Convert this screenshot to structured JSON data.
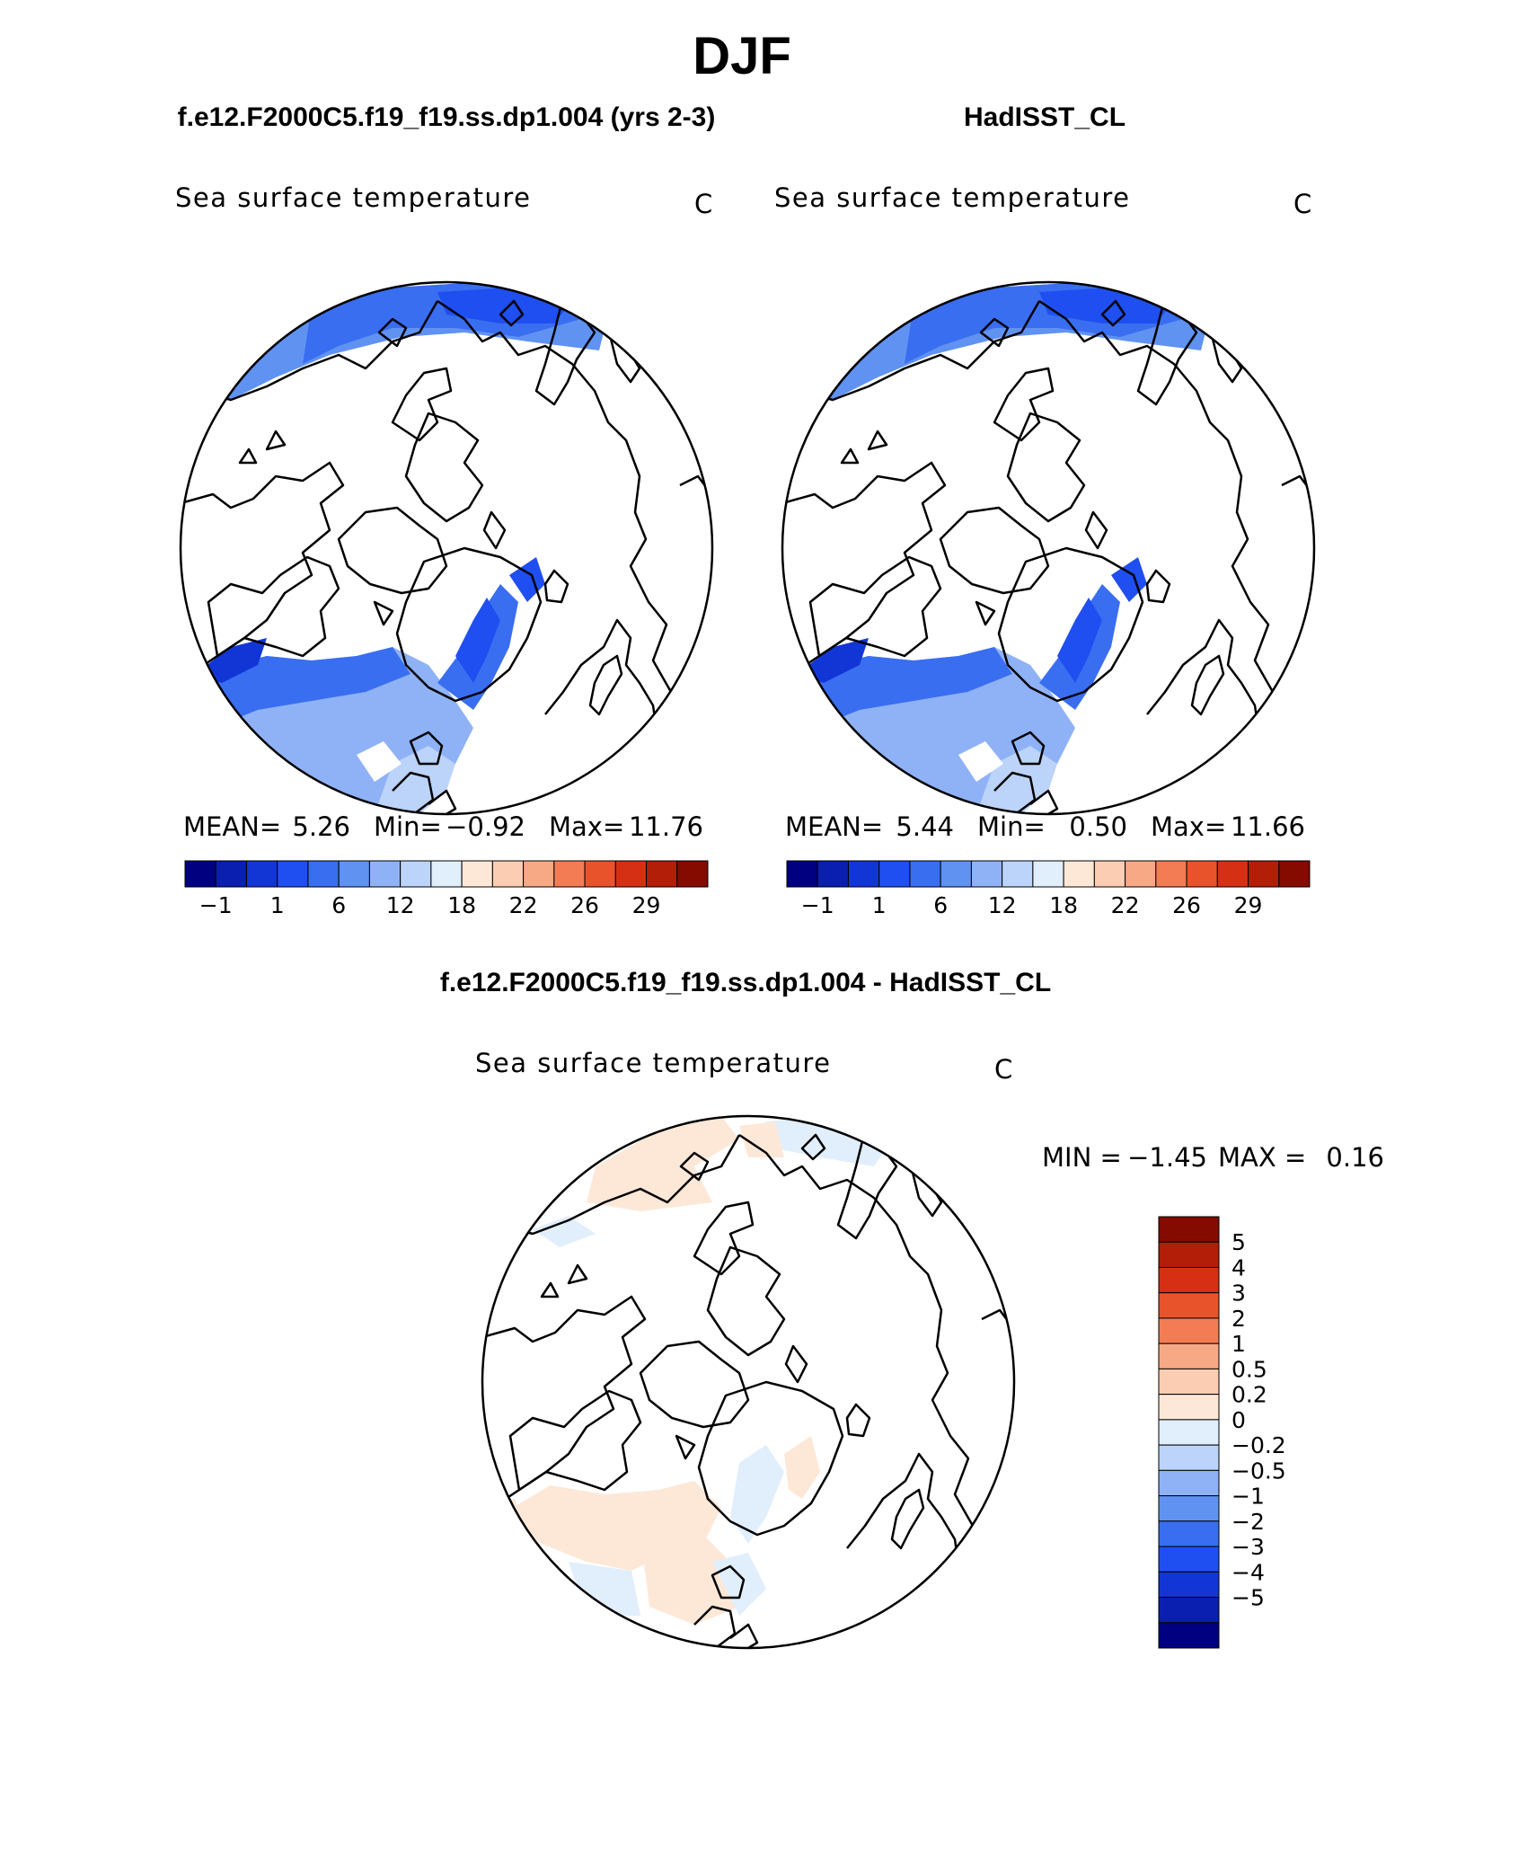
{
  "figure": {
    "title": "DJF",
    "colors": {
      "sst_palette": [
        "#000080",
        "#0a1fb0",
        "#1236d6",
        "#1f4ff0",
        "#3a6ef0",
        "#6092f2",
        "#8fb2f6",
        "#bcd3fa",
        "#e1eefc",
        "#fde8d8",
        "#fbcdb3",
        "#f7a884",
        "#f47c55",
        "#e9532c",
        "#d63014",
        "#b31e08",
        "#850a00"
      ],
      "diff_palette": [
        "#000080",
        "#0a1fb0",
        "#1236d6",
        "#1f4ff0",
        "#3a6ef0",
        "#6092f2",
        "#8fb2f6",
        "#bcd3fa",
        "#e1eefc",
        "#fde8d8",
        "#fbcdb3",
        "#f7a884",
        "#f47c55",
        "#e9532c",
        "#d63014",
        "#b31e08",
        "#850a00"
      ]
    },
    "panels": [
      {
        "id": "model",
        "heading": "f.e12.F2000C5.f19_f19.ss.dp1.004 (yrs 2-3)",
        "variable": "Sea surface temperature",
        "units": "C",
        "stats": {
          "mean_label": "MEAN=",
          "mean": "5.26",
          "min_label": "Min=",
          "min": "−0.92",
          "max_label": "Max=",
          "max": "11.76"
        },
        "colorbar_ticks": [
          "−1",
          "1",
          "6",
          "12",
          "18",
          "22",
          "26",
          "29"
        ]
      },
      {
        "id": "obs",
        "heading": "HadISST_CL",
        "variable": "Sea surface temperature",
        "units": "C",
        "stats": {
          "mean_label": "MEAN=",
          "mean": "5.44",
          "min_label": "Min=",
          "min": "0.50",
          "max_label": "Max=",
          "max": "11.66"
        },
        "colorbar_ticks": [
          "−1",
          "1",
          "6",
          "12",
          "18",
          "22",
          "26",
          "29"
        ]
      },
      {
        "id": "diff",
        "heading": "f.e12.F2000C5.f19_f19.ss.dp1.004 - HadISST_CL",
        "variable": "Sea surface temperature",
        "units": "C",
        "stats": {
          "min_label": "MIN =",
          "min": "−1.45",
          "max_label": "MAX =",
          "max": "0.16"
        },
        "colorbar_ticks": [
          "5",
          "4",
          "3",
          "2",
          "1",
          "0.5",
          "0.2",
          "0",
          "−0.2",
          "−0.5",
          "−1",
          "−2",
          "−3",
          "−4",
          "−5"
        ]
      }
    ]
  }
}
